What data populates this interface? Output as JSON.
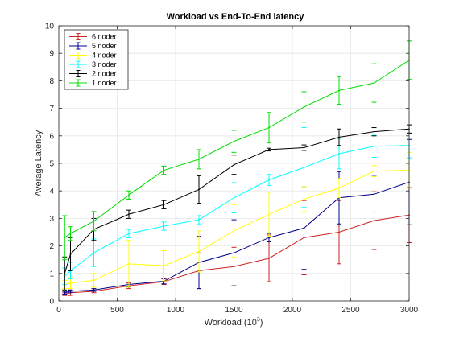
{
  "chart_data": {
    "type": "line",
    "title": "Workload vs End-To-End latency",
    "xlabel": "Workload (10",
    "xlabel_sup": "3",
    "xlabel_close": ")",
    "ylabel": "Average Latency",
    "xlim": [
      0,
      3000
    ],
    "ylim": [
      0,
      10
    ],
    "xticks": [
      0,
      500,
      1000,
      1500,
      2000,
      2500,
      3000
    ],
    "yticks": [
      0,
      1,
      2,
      3,
      4,
      5,
      6,
      7,
      8,
      9,
      10
    ],
    "grid": true,
    "legend_position": "top-left",
    "x": [
      50,
      100,
      300,
      600,
      900,
      1200,
      1500,
      1800,
      2100,
      2400,
      2700,
      3000
    ],
    "series": [
      {
        "name": "6 noder",
        "color": "#cc2222",
        "values": [
          0.25,
          0.3,
          0.35,
          0.55,
          0.7,
          1.1,
          1.25,
          1.55,
          2.3,
          2.5,
          2.92,
          3.12
        ],
        "errors": [
          0.05,
          0.1,
          0.05,
          0.1,
          0.1,
          0.65,
          0.7,
          0.85,
          1.35,
          1.15,
          1.05,
          1.0
        ]
      },
      {
        "name": "5 noder",
        "color": "#00008b",
        "values": [
          0.3,
          0.35,
          0.4,
          0.6,
          0.72,
          1.4,
          1.75,
          2.3,
          2.65,
          3.75,
          3.88,
          4.32
        ],
        "errors": [
          0.05,
          0.05,
          0.05,
          0.08,
          0.1,
          0.95,
          1.2,
          0.15,
          1.5,
          0.95,
          0.65,
          1.55
        ]
      },
      {
        "name": "4 noder",
        "color": "#ffff00",
        "values": [
          0.6,
          0.65,
          0.75,
          1.35,
          1.28,
          1.8,
          2.55,
          3.15,
          3.7,
          4.1,
          4.72,
          4.75
        ],
        "errors": [
          0.15,
          0.2,
          0.25,
          0.85,
          0.55,
          0.75,
          0.95,
          0.8,
          0.45,
          0.35,
          0.2,
          0.65
        ]
      },
      {
        "name": "3 noder",
        "color": "#00ffff",
        "values": [
          0.9,
          1.1,
          1.75,
          2.45,
          2.72,
          2.95,
          3.75,
          4.4,
          4.85,
          5.35,
          5.62,
          5.65
        ],
        "errors": [
          0.3,
          0.3,
          0.5,
          0.15,
          0.15,
          0.15,
          0.55,
          0.2,
          1.45,
          0.55,
          0.4,
          0.45
        ]
      },
      {
        "name": "2 noder",
        "color": "#000000",
        "values": [
          1.0,
          1.7,
          2.6,
          3.15,
          3.5,
          4.05,
          4.95,
          5.5,
          5.57,
          5.95,
          6.15,
          6.25
        ],
        "errors": [
          0.6,
          0.6,
          0.4,
          0.15,
          0.15,
          0.5,
          0.35,
          0.05,
          0.1,
          0.3,
          0.15,
          0.15
        ]
      },
      {
        "name": "1 noder",
        "color": "#00dd00",
        "values": [
          2.3,
          2.45,
          2.9,
          3.85,
          4.75,
          5.15,
          5.8,
          6.3,
          7.05,
          7.65,
          7.92,
          8.75
        ],
        "errors": [
          0.8,
          0.25,
          0.35,
          0.15,
          0.15,
          0.35,
          0.4,
          0.55,
          0.55,
          0.5,
          0.7,
          0.7
        ]
      }
    ]
  }
}
